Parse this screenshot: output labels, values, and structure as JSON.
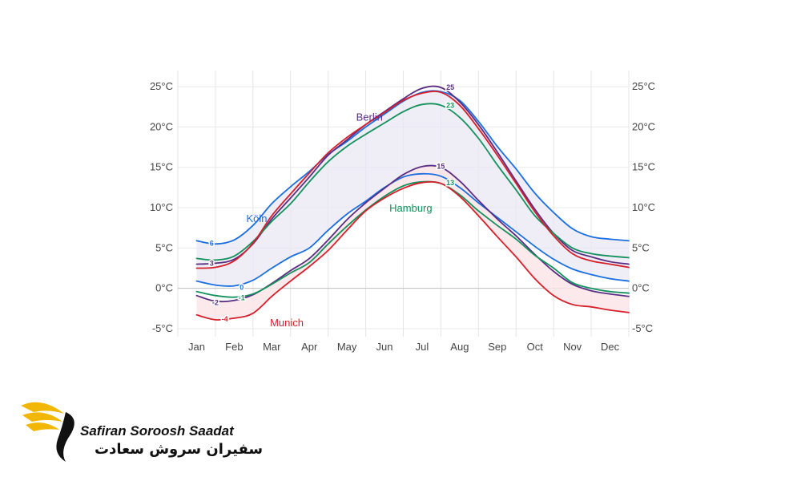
{
  "chart_data": {
    "type": "line",
    "title": "",
    "xlabel": "",
    "ylabel": "",
    "ylim": [
      -6,
      27
    ],
    "y_ticks": [
      "25°C",
      "20°C",
      "15°C",
      "10°C",
      "5°C",
      "0°C",
      "-5°C"
    ],
    "y_tick_values": [
      25,
      20,
      15,
      10,
      5,
      0,
      -5
    ],
    "categories": [
      "Jan",
      "Feb",
      "Mar",
      "Apr",
      "May",
      "Jun",
      "Jul",
      "Aug",
      "Sep",
      "Oct",
      "Nov",
      "Dec"
    ],
    "grid": true,
    "series": [
      {
        "name": "Köln",
        "kind": "max",
        "color": "#1a6fe0",
        "x": [
          0,
          0.5,
          1,
          1.5,
          2,
          2.5,
          3,
          3.5,
          4,
          4.5,
          5,
          5.5,
          6,
          6.5,
          7,
          7.5,
          8,
          8.5,
          9,
          9.5,
          10,
          10.5,
          11,
          11.5
        ],
        "values": [
          5.9,
          5.5,
          6.0,
          7.8,
          10.5,
          12.6,
          14.5,
          16.6,
          18.2,
          20.0,
          21.6,
          23.2,
          24.3,
          24.4,
          23.3,
          20.7,
          17.6,
          14.8,
          11.8,
          9.4,
          7.4,
          6.4,
          6.1,
          5.9
        ]
      },
      {
        "name": "Berlin",
        "kind": "max",
        "color": "#5a2d82",
        "x": [
          0,
          0.5,
          1,
          1.5,
          2,
          2.5,
          3,
          3.5,
          4,
          4.5,
          5,
          5.5,
          6,
          6.5,
          7,
          7.5,
          8,
          8.5,
          9,
          9.5,
          10,
          10.5,
          11,
          11.5
        ],
        "values": [
          3.0,
          3.1,
          3.6,
          5.5,
          8.6,
          11.2,
          13.8,
          16.5,
          18.4,
          20.3,
          21.9,
          23.5,
          24.8,
          24.9,
          23.1,
          20.3,
          16.9,
          13.3,
          9.8,
          6.8,
          4.7,
          3.9,
          3.3,
          3.0
        ]
      },
      {
        "name": "Hamburg",
        "kind": "max",
        "color": "#13915c",
        "x": [
          0,
          0.5,
          1,
          1.5,
          2,
          2.5,
          3,
          3.5,
          4,
          4.5,
          5,
          5.5,
          6,
          6.5,
          7,
          7.5,
          8,
          8.5,
          9,
          9.5,
          10,
          10.5,
          11,
          11.5
        ],
        "values": [
          3.7,
          3.5,
          4.0,
          5.8,
          8.3,
          10.5,
          13.2,
          15.7,
          17.6,
          19.1,
          20.5,
          21.9,
          22.8,
          22.7,
          21.2,
          18.6,
          15.3,
          12.2,
          9.0,
          6.8,
          5.0,
          4.3,
          4.0,
          3.8
        ]
      },
      {
        "name": "Munich",
        "kind": "max",
        "color": "#d61f2b",
        "x": [
          0,
          0.5,
          1,
          1.5,
          2,
          2.5,
          3,
          3.5,
          4,
          4.5,
          5,
          5.5,
          6,
          6.5,
          7,
          7.5,
          8,
          8.5,
          9,
          9.5,
          10,
          10.5,
          11,
          11.5
        ],
        "values": [
          2.5,
          2.6,
          3.4,
          5.6,
          9.0,
          11.7,
          14.3,
          16.8,
          18.7,
          20.3,
          21.8,
          23.3,
          24.2,
          24.3,
          22.7,
          19.8,
          16.5,
          13.0,
          9.5,
          6.5,
          4.3,
          3.4,
          3.0,
          2.6
        ]
      },
      {
        "name": "Köln",
        "kind": "min",
        "color": "#1a6fe0",
        "x": [
          0,
          0.5,
          1,
          1.5,
          2,
          2.5,
          3,
          3.5,
          4,
          4.5,
          5,
          5.5,
          6,
          6.5,
          7,
          7.5,
          8,
          8.5,
          9,
          9.5,
          10,
          10.5,
          11,
          11.5
        ],
        "values": [
          0.9,
          0.4,
          0.3,
          1.0,
          2.5,
          3.9,
          5.0,
          7.2,
          9.2,
          10.8,
          12.5,
          13.8,
          14.2,
          13.9,
          12.5,
          10.6,
          8.8,
          7.0,
          5.2,
          3.6,
          2.4,
          1.7,
          1.2,
          0.9
        ]
      },
      {
        "name": "Berlin",
        "kind": "min",
        "color": "#5a2d82",
        "x": [
          0,
          0.5,
          1,
          1.5,
          2,
          2.5,
          3,
          3.5,
          4,
          4.5,
          5,
          5.5,
          6,
          6.5,
          7,
          7.5,
          8,
          8.5,
          9,
          9.5,
          10,
          10.5,
          11,
          11.5
        ],
        "values": [
          -0.9,
          -1.6,
          -1.5,
          -0.8,
          0.6,
          2.2,
          3.7,
          6.0,
          8.5,
          10.6,
          12.4,
          14.1,
          15.1,
          15.0,
          13.3,
          10.9,
          8.6,
          6.5,
          4.2,
          2.1,
          0.5,
          -0.3,
          -0.7,
          -1.0
        ]
      },
      {
        "name": "Hamburg",
        "kind": "min",
        "color": "#13915c",
        "x": [
          0,
          0.5,
          1,
          1.5,
          2,
          2.5,
          3,
          3.5,
          4,
          4.5,
          5,
          5.5,
          6,
          6.5,
          7,
          7.5,
          8,
          8.5,
          9,
          9.5,
          10,
          10.5,
          11,
          11.5
        ],
        "values": [
          -0.4,
          -0.9,
          -1.1,
          -0.7,
          0.5,
          1.9,
          3.2,
          5.5,
          7.7,
          9.7,
          11.4,
          12.7,
          13.2,
          13.0,
          11.6,
          9.6,
          7.8,
          6.1,
          4.1,
          2.5,
          0.7,
          0.0,
          -0.4,
          -0.6
        ]
      },
      {
        "name": "Munich",
        "kind": "min",
        "color": "#d61f2b",
        "x": [
          0,
          0.5,
          1,
          1.5,
          2,
          2.5,
          3,
          3.5,
          4,
          4.5,
          5,
          5.5,
          6,
          6.5,
          7,
          7.5,
          8,
          8.5,
          9,
          9.5,
          10,
          10.5,
          11,
          11.5
        ],
        "values": [
          -3.3,
          -3.9,
          -3.7,
          -3.1,
          -1.0,
          0.9,
          2.7,
          4.7,
          7.2,
          9.6,
          11.2,
          12.4,
          13.1,
          13.0,
          11.4,
          9.0,
          6.4,
          3.9,
          1.2,
          -0.9,
          -2.0,
          -2.3,
          -2.7,
          -3.0
        ]
      }
    ],
    "annotations": [
      {
        "text": "Berlin",
        "color": "#5a2d82",
        "x": 4.6,
        "y": 20.8
      },
      {
        "text": "Köln",
        "color": "#1a6fe0",
        "x": 1.6,
        "y": 8.2
      },
      {
        "text": "Hamburg",
        "color": "#13915c",
        "x": 5.7,
        "y": 9.5
      },
      {
        "text": "Munich",
        "color": "#d61f2b",
        "x": 2.4,
        "y": -4.7
      }
    ],
    "end_labels": [
      {
        "text": "6",
        "color": "#1a6fe0",
        "x": 0.4,
        "y": 5.6
      },
      {
        "text": "3",
        "color": "#5a2d82",
        "x": 0.4,
        "y": 3.1
      },
      {
        "text": "0",
        "color": "#1a6fe0",
        "x": 1.2,
        "y": 0.1
      },
      {
        "text": "-1",
        "color": "#13915c",
        "x": 1.2,
        "y": -1.2
      },
      {
        "text": "-2",
        "color": "#5a2d82",
        "x": 0.5,
        "y": -1.8
      },
      {
        "text": "-4",
        "color": "#d61f2b",
        "x": 0.75,
        "y": -3.8
      },
      {
        "text": "25",
        "color": "#5a2d82",
        "x": 6.75,
        "y": 24.9
      },
      {
        "text": "23",
        "color": "#13915c",
        "x": 6.75,
        "y": 22.7
      },
      {
        "text": "15",
        "color": "#5a2d82",
        "x": 6.5,
        "y": 15.1
      },
      {
        "text": "13",
        "color": "#13915c",
        "x": 6.75,
        "y": 13.1
      }
    ]
  },
  "logo": {
    "name": "Safiran Soroosh Saadat",
    "name_fa": "سفیران سروش سعادت",
    "accent_color": "#f2b705"
  }
}
